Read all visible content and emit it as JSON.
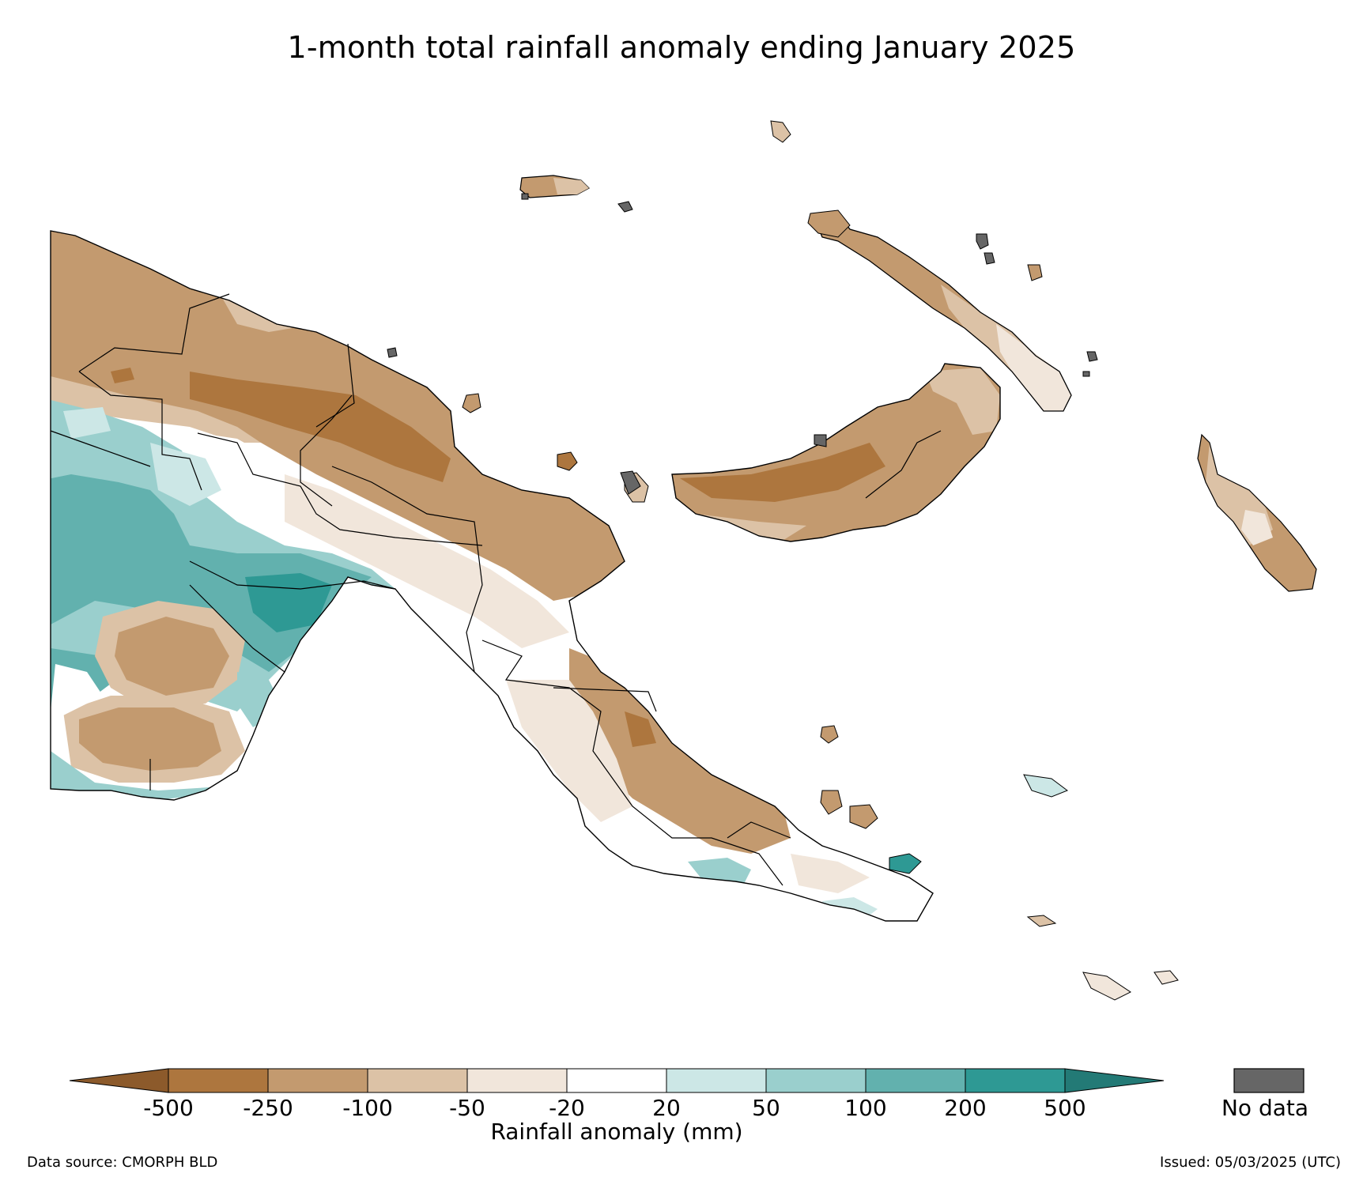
{
  "title": "1-month total rainfall anomaly ending January 2025",
  "legend": {
    "title": "Rainfall anomaly (mm)",
    "ticks": [
      "-500",
      "-250",
      "-100",
      "-50",
      "-20",
      "20",
      "50",
      "100",
      "200",
      "500"
    ],
    "low_extend_color": "#8c5a2b",
    "high_extend_color": "#237a76",
    "bins": [
      {
        "from": -500,
        "to": -250,
        "color": "#ad763e"
      },
      {
        "from": -250,
        "to": -100,
        "color": "#c39a6f"
      },
      {
        "from": -100,
        "to": -50,
        "color": "#dcc2a6"
      },
      {
        "from": -50,
        "to": -20,
        "color": "#f1e6db"
      },
      {
        "from": -20,
        "to": 20,
        "color": "#ffffff"
      },
      {
        "from": 20,
        "to": 50,
        "color": "#cce7e6"
      },
      {
        "from": 50,
        "to": 100,
        "color": "#9acfcd"
      },
      {
        "from": 100,
        "to": 200,
        "color": "#62b1ae"
      },
      {
        "from": 200,
        "to": 500,
        "color": "#2e9994"
      }
    ],
    "no_data_label": "No data",
    "no_data_color": "#666666"
  },
  "footer": {
    "data_source": "Data source: CMORPH BLD",
    "issued": "Issued: 05/03/2025 (UTC)"
  }
}
